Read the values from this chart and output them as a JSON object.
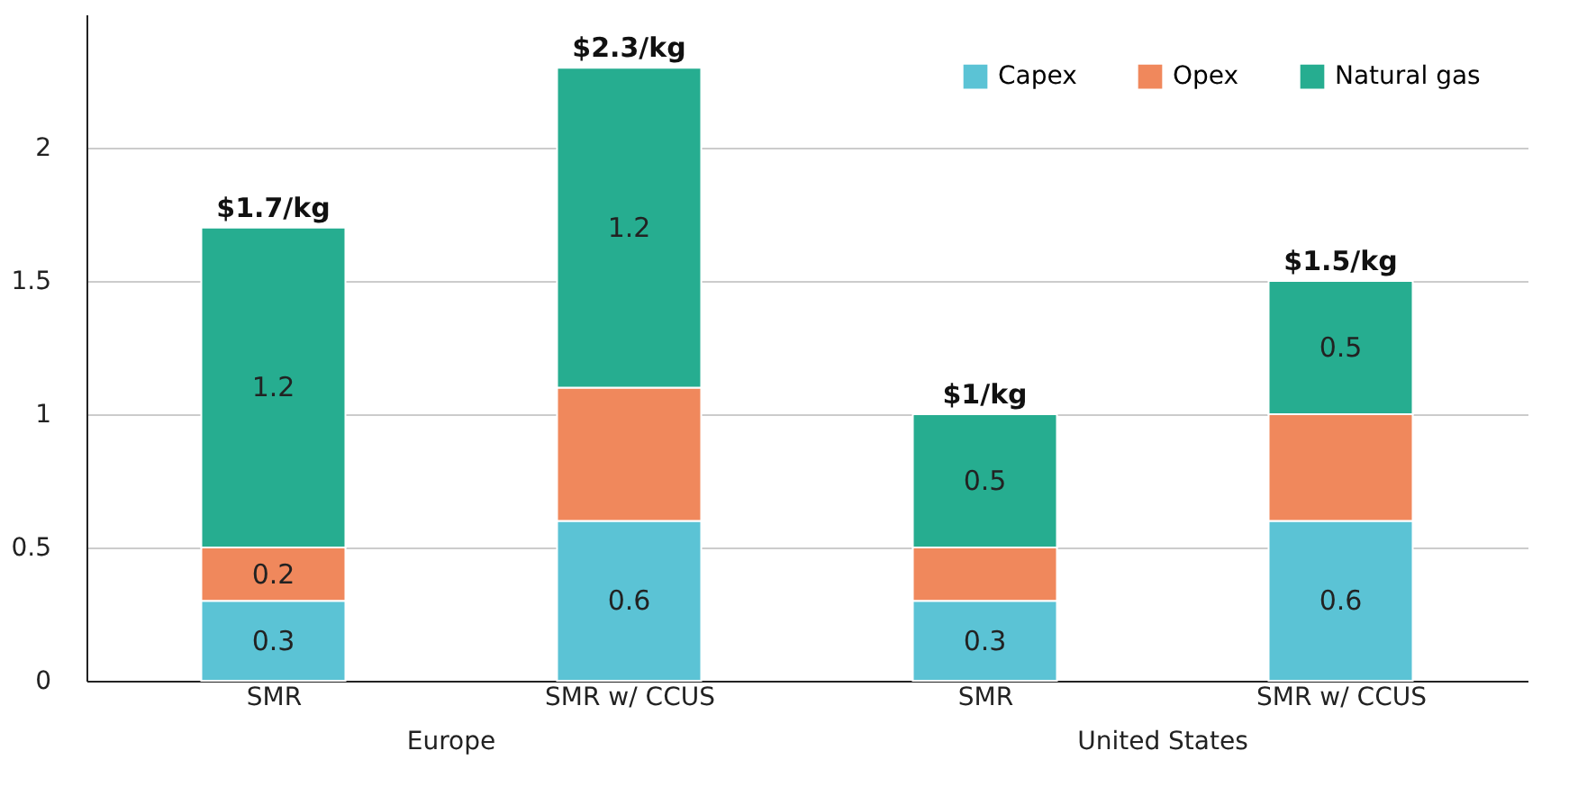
{
  "chart_data": {
    "type": "bar",
    "stacked": true,
    "categories": [
      "SMR",
      "SMR w/ CCUS",
      "SMR",
      "SMR w/ CCUS"
    ],
    "series": [
      {
        "name": "Capex",
        "color": "#5bc3d5",
        "values": [
          0.3,
          0.6,
          0.3,
          0.6
        ],
        "value_labels": [
          "0.3",
          "0.6",
          "0.3",
          "0.6"
        ]
      },
      {
        "name": "Opex",
        "color": "#f0885c",
        "values": [
          0.2,
          0.5,
          0.2,
          0.4
        ],
        "value_labels": [
          "0.2",
          null,
          null,
          null
        ]
      },
      {
        "name": "Natural gas",
        "color": "#26ad90",
        "values": [
          1.2,
          1.2,
          0.5,
          0.5
        ],
        "value_labels": [
          "1.2",
          "1.2",
          "0.5",
          "0.5"
        ]
      }
    ],
    "totals": [
      "$1.7/kg",
      "$2.3/kg",
      "$1/kg",
      "$1.5/kg"
    ],
    "annotations": [
      "Europe",
      "United States"
    ],
    "ylim": [
      0,
      2.5
    ],
    "yticks": [
      0,
      0.5,
      1,
      1.5,
      2
    ],
    "grid": "y",
    "legend": "top right"
  }
}
